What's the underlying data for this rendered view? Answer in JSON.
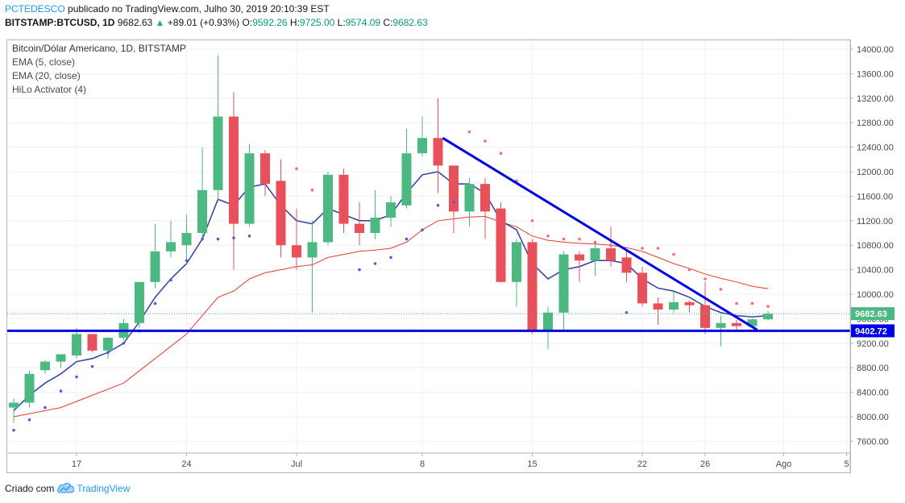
{
  "header": {
    "user": "PCTEDESCO",
    "published": "publicado no TradingView.com, Julho 30, 2019 20:10:39 EST",
    "symbol": "BITSTAMP:BTCUSD, 1D",
    "last": "9682.63",
    "change": "+89.01 (+0.93%)",
    "o_label": "O:",
    "o_value": "9592.26",
    "h_label": "H:",
    "h_value": "9725.00",
    "l_label": "L:",
    "l_value": "9574.09",
    "c_label": "C:",
    "c_value": "9682.63"
  },
  "legend": {
    "title": "Bitcoin/Dólar Americano, 1D, BITSTAMP",
    "ema5": "EMA (5, close)",
    "ema20": "EMA (20, close)",
    "hilo": "HiLo Activator (4)"
  },
  "footer": {
    "created": "Criado com",
    "brand": "TradingView"
  },
  "colors": {
    "up": "#4bb981",
    "down": "#e8505b",
    "ema5": "#3b4aa0",
    "ema20": "#e53935",
    "trend": "#0000e6",
    "hilo_up": "#5b5bd6",
    "hilo_down": "#ef6f6f"
  },
  "chart_data": {
    "type": "candlestick",
    "y_ticks": [
      "14000.00",
      "13600.00",
      "13200.00",
      "12800.00",
      "12400.00",
      "12000.00",
      "11600.00",
      "11200.00",
      "10800.00",
      "10400.00",
      "10000.00",
      "9600.00",
      "9200.00",
      "8800.00",
      "8400.00",
      "8000.00",
      "7600.00"
    ],
    "y_tick_values": [
      14000,
      13600,
      13200,
      12800,
      12400,
      12000,
      11600,
      11200,
      10800,
      10400,
      10000,
      9600,
      9200,
      8800,
      8400,
      8000,
      7600
    ],
    "ylim": [
      7300,
      14400
    ],
    "x_ticks": [
      {
        "label": "17",
        "day": 17
      },
      {
        "label": "24",
        "day": 24
      },
      {
        "label": "Jul",
        "day": 31
      },
      {
        "label": "8",
        "day": 39
      },
      {
        "label": "15",
        "day": 46
      },
      {
        "label": "22",
        "day": 53
      },
      {
        "label": "26",
        "day": 57
      },
      {
        "label": "Ago",
        "day": 62
      },
      {
        "label": "5",
        "day": 66
      }
    ],
    "day_note": "day index counts days from June 0 2019 (17 = Jun 17)",
    "candles": [
      {
        "d": 13,
        "o": 8150,
        "h": 8300,
        "l": 7900,
        "c": 8230
      },
      {
        "d": 14,
        "o": 8230,
        "h": 8750,
        "l": 8150,
        "c": 8700
      },
      {
        "d": 15,
        "o": 8760,
        "h": 8930,
        "l": 8700,
        "c": 8900
      },
      {
        "d": 16,
        "o": 8900,
        "h": 9020,
        "l": 8800,
        "c": 9020
      },
      {
        "d": 17,
        "o": 9000,
        "h": 9450,
        "l": 8950,
        "c": 9350
      },
      {
        "d": 18,
        "o": 9350,
        "h": 9350,
        "l": 9050,
        "c": 9080
      },
      {
        "d": 19,
        "o": 9080,
        "h": 9300,
        "l": 8950,
        "c": 9290
      },
      {
        "d": 20,
        "o": 9290,
        "h": 9600,
        "l": 9250,
        "c": 9530
      },
      {
        "d": 21,
        "o": 9530,
        "h": 10200,
        "l": 9450,
        "c": 10200
      },
      {
        "d": 22,
        "o": 10200,
        "h": 11150,
        "l": 10100,
        "c": 10700
      },
      {
        "d": 23,
        "o": 10700,
        "h": 11200,
        "l": 10600,
        "c": 10850
      },
      {
        "d": 24,
        "o": 10800,
        "h": 11300,
        "l": 10500,
        "c": 11000
      },
      {
        "d": 25,
        "o": 11000,
        "h": 12400,
        "l": 10900,
        "c": 11700
      },
      {
        "d": 26,
        "o": 11700,
        "h": 13900,
        "l": 11500,
        "c": 12900
      },
      {
        "d": 27,
        "o": 12900,
        "h": 13300,
        "l": 10400,
        "c": 11150
      },
      {
        "d": 28,
        "o": 11150,
        "h": 12450,
        "l": 11100,
        "c": 12300
      },
      {
        "d": 29,
        "o": 12300,
        "h": 12350,
        "l": 11600,
        "c": 11800
      },
      {
        "d": 30,
        "o": 11850,
        "h": 12200,
        "l": 10600,
        "c": 10800
      },
      {
        "d": 31,
        "o": 10800,
        "h": 11400,
        "l": 10400,
        "c": 10600
      },
      {
        "d": 32,
        "o": 10600,
        "h": 11200,
        "l": 9700,
        "c": 10850
      },
      {
        "d": 33,
        "o": 10850,
        "h": 12000,
        "l": 10800,
        "c": 11950
      },
      {
        "d": 34,
        "o": 11950,
        "h": 12050,
        "l": 11000,
        "c": 11150
      },
      {
        "d": 35,
        "o": 11150,
        "h": 11500,
        "l": 10800,
        "c": 11000
      },
      {
        "d": 36,
        "o": 11000,
        "h": 11700,
        "l": 10900,
        "c": 11250
      },
      {
        "d": 37,
        "o": 11250,
        "h": 11600,
        "l": 11100,
        "c": 11500
      },
      {
        "d": 38,
        "o": 11450,
        "h": 12700,
        "l": 11400,
        "c": 12300
      },
      {
        "d": 39,
        "o": 12300,
        "h": 12900,
        "l": 12250,
        "c": 12550
      },
      {
        "d": 40,
        "o": 12550,
        "h": 13200,
        "l": 11650,
        "c": 12100
      },
      {
        "d": 41,
        "o": 12100,
        "h": 12100,
        "l": 11000,
        "c": 11350
      },
      {
        "d": 42,
        "o": 11350,
        "h": 11900,
        "l": 11100,
        "c": 11800
      },
      {
        "d": 43,
        "o": 11800,
        "h": 11900,
        "l": 10900,
        "c": 11350
      },
      {
        "d": 44,
        "o": 11400,
        "h": 11500,
        "l": 10200,
        "c": 10200
      },
      {
        "d": 45,
        "o": 10200,
        "h": 10900,
        "l": 9800,
        "c": 10850
      },
      {
        "d": 46,
        "o": 10850,
        "h": 10900,
        "l": 9350,
        "c": 9400
      },
      {
        "d": 47,
        "o": 9400,
        "h": 9800,
        "l": 9100,
        "c": 9700
      },
      {
        "d": 48,
        "o": 9700,
        "h": 10700,
        "l": 9400,
        "c": 10650
      },
      {
        "d": 49,
        "o": 10650,
        "h": 10700,
        "l": 10200,
        "c": 10550
      },
      {
        "d": 50,
        "o": 10550,
        "h": 10850,
        "l": 10300,
        "c": 10750
      },
      {
        "d": 51,
        "o": 10750,
        "h": 11100,
        "l": 10450,
        "c": 10550
      },
      {
        "d": 52,
        "o": 10600,
        "h": 10700,
        "l": 10200,
        "c": 10350
      },
      {
        "d": 53,
        "o": 10350,
        "h": 10450,
        "l": 9800,
        "c": 9850
      },
      {
        "d": 54,
        "o": 9850,
        "h": 9950,
        "l": 9500,
        "c": 9750
      },
      {
        "d": 55,
        "o": 9750,
        "h": 10050,
        "l": 9700,
        "c": 9870
      },
      {
        "d": 56,
        "o": 9870,
        "h": 9900,
        "l": 9700,
        "c": 9820
      },
      {
        "d": 57,
        "o": 9820,
        "h": 10200,
        "l": 9350,
        "c": 9450
      },
      {
        "d": 58,
        "o": 9450,
        "h": 9650,
        "l": 9150,
        "c": 9530
      },
      {
        "d": 59,
        "o": 9530,
        "h": 9580,
        "l": 9400,
        "c": 9480
      },
      {
        "d": 60,
        "o": 9480,
        "h": 9600,
        "l": 9450,
        "c": 9590
      },
      {
        "d": 61,
        "o": 9590,
        "h": 9725,
        "l": 9574,
        "c": 9682
      }
    ],
    "ema5": [
      [
        13,
        8100
      ],
      [
        14,
        8350
      ],
      [
        15,
        8550
      ],
      [
        16,
        8700
      ],
      [
        17,
        8900
      ],
      [
        18,
        8950
      ],
      [
        19,
        9050
      ],
      [
        20,
        9200
      ],
      [
        21,
        9550
      ],
      [
        22,
        9950
      ],
      [
        23,
        10250
      ],
      [
        24,
        10500
      ],
      [
        25,
        10900
      ],
      [
        26,
        11550
      ],
      [
        27,
        11450
      ],
      [
        28,
        11750
      ],
      [
        29,
        11800
      ],
      [
        30,
        11450
      ],
      [
        31,
        11200
      ],
      [
        32,
        11150
      ],
      [
        33,
        11400
      ],
      [
        34,
        11300
      ],
      [
        35,
        11200
      ],
      [
        36,
        11200
      ],
      [
        37,
        11300
      ],
      [
        38,
        11650
      ],
      [
        39,
        11950
      ],
      [
        40,
        12000
      ],
      [
        41,
        11800
      ],
      [
        42,
        11800
      ],
      [
        43,
        11650
      ],
      [
        44,
        11200
      ],
      [
        45,
        11050
      ],
      [
        46,
        10500
      ],
      [
        47,
        10250
      ],
      [
        48,
        10400
      ],
      [
        49,
        10450
      ],
      [
        50,
        10550
      ],
      [
        51,
        10550
      ],
      [
        52,
        10500
      ],
      [
        53,
        10250
      ],
      [
        54,
        10100
      ],
      [
        55,
        10050
      ],
      [
        56,
        9950
      ],
      [
        57,
        9800
      ],
      [
        58,
        9700
      ],
      [
        59,
        9650
      ],
      [
        60,
        9630
      ],
      [
        61,
        9650
      ]
    ],
    "ema20": [
      [
        13,
        8000
      ],
      [
        16,
        8150
      ],
      [
        18,
        8350
      ],
      [
        20,
        8550
      ],
      [
        22,
        8950
      ],
      [
        24,
        9350
      ],
      [
        25,
        9650
      ],
      [
        26,
        9950
      ],
      [
        27,
        10050
      ],
      [
        28,
        10250
      ],
      [
        29,
        10350
      ],
      [
        30,
        10400
      ],
      [
        31,
        10450
      ],
      [
        32,
        10480
      ],
      [
        33,
        10600
      ],
      [
        34,
        10650
      ],
      [
        35,
        10700
      ],
      [
        36,
        10720
      ],
      [
        37,
        10750
      ],
      [
        38,
        10850
      ],
      [
        39,
        11050
      ],
      [
        40,
        11200
      ],
      [
        41,
        11230
      ],
      [
        42,
        11260
      ],
      [
        43,
        11270
      ],
      [
        44,
        11180
      ],
      [
        45,
        11100
      ],
      [
        46,
        10950
      ],
      [
        47,
        10880
      ],
      [
        48,
        10850
      ],
      [
        49,
        10830
      ],
      [
        50,
        10820
      ],
      [
        51,
        10800
      ],
      [
        52,
        10760
      ],
      [
        53,
        10700
      ],
      [
        54,
        10600
      ],
      [
        55,
        10500
      ],
      [
        56,
        10420
      ],
      [
        57,
        10330
      ],
      [
        58,
        10260
      ],
      [
        59,
        10200
      ],
      [
        60,
        10130
      ],
      [
        61,
        10090
      ]
    ],
    "hilo_support": [
      [
        13,
        7780
      ],
      [
        14,
        7950
      ],
      [
        15,
        8150
      ],
      [
        16,
        8420
      ],
      [
        17,
        8650
      ],
      [
        18,
        8820
      ],
      [
        19,
        9050
      ],
      [
        20,
        9200
      ],
      [
        21,
        9400
      ],
      [
        22,
        9850
      ],
      [
        23,
        10230
      ],
      [
        24,
        10550
      ],
      [
        25,
        10900
      ],
      [
        26,
        10900
      ],
      [
        27,
        10920
      ],
      [
        28,
        10950
      ],
      [
        35,
        10400
      ],
      [
        36,
        10500
      ],
      [
        37,
        10600
      ],
      [
        38,
        10900
      ],
      [
        39,
        11050
      ],
      [
        40,
        11450
      ],
      [
        41,
        11500
      ],
      [
        52,
        9700
      ]
    ],
    "hilo_resistance": [
      [
        31,
        12050
      ],
      [
        32,
        11700
      ],
      [
        42,
        12650
      ],
      [
        43,
        12500
      ],
      [
        44,
        12300
      ],
      [
        45,
        11850
      ],
      [
        46,
        11200
      ],
      [
        47,
        10950
      ],
      [
        48,
        10900
      ],
      [
        49,
        10900
      ],
      [
        50,
        10850
      ],
      [
        51,
        10800
      ],
      [
        53,
        10750
      ],
      [
        54,
        10750
      ],
      [
        55,
        10650
      ],
      [
        56,
        10400
      ],
      [
        57,
        10250
      ],
      [
        58,
        10080
      ],
      [
        59,
        9850
      ],
      [
        60,
        9850
      ],
      [
        61,
        9800
      ]
    ],
    "trendlines": [
      {
        "name": "resistance",
        "p1": [
          40.3,
          12550
        ],
        "p2": [
          60.3,
          9420
        ]
      },
      {
        "name": "support",
        "p1": [
          12,
          9402.72
        ],
        "p2": [
          66,
          9402.72
        ]
      }
    ],
    "price_labels": [
      {
        "value": 9682.63,
        "text": "9682.63"
      },
      {
        "value": 9402.72,
        "text": "9402.72"
      }
    ],
    "grid": true
  }
}
